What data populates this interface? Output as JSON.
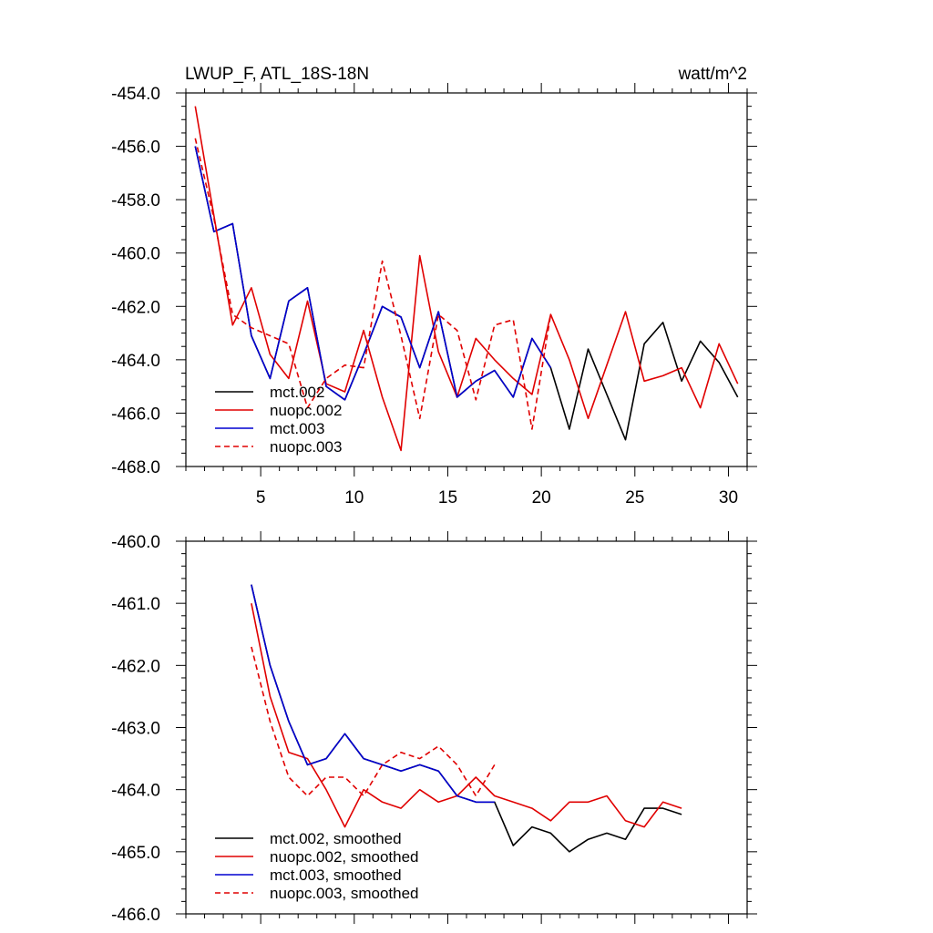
{
  "chart_data": [
    {
      "type": "line",
      "title": "LWUP_F, ATL_18S-18N",
      "units": "watt/m^2",
      "xlim": [
        1,
        31
      ],
      "ylim": [
        -468,
        -454
      ],
      "xticks": [
        5,
        10,
        15,
        20,
        25,
        30
      ],
      "xtick_labels": [
        "5",
        "10",
        "15",
        "20",
        "25",
        "30"
      ],
      "yticks": [
        -454,
        -456,
        -458,
        -460,
        -462,
        -464,
        -466,
        -468
      ],
      "ytick_labels": [
        "-454.0",
        "-456.0",
        "-458.0",
        "-460.0",
        "-462.0",
        "-464.0",
        "-466.0",
        "-468.0"
      ],
      "legend_position": "bottom-left",
      "series": [
        {
          "name": "mct.002",
          "color": "#000000",
          "dash": "solid",
          "x": [
            1.5,
            2.5,
            3.5,
            4.5,
            5.5,
            6.5,
            7.5,
            8.5,
            9.5,
            10.5,
            11.5,
            12.5,
            13.5,
            14.5,
            15.5,
            16.5,
            17.5,
            18.5,
            19.5,
            20.5,
            21.5,
            22.5,
            23.5,
            24.5,
            25.5,
            26.5,
            27.5,
            28.5,
            29.5,
            30.5
          ],
          "y": [
            -456.0,
            -459.2,
            -458.9,
            -463.1,
            -464.7,
            -461.8,
            -461.3,
            -465.0,
            -465.5,
            -463.8,
            -462.0,
            -462.4,
            -464.3,
            -462.2,
            -465.4,
            -464.8,
            -464.4,
            -465.4,
            -463.2,
            -464.3,
            -466.6,
            -463.6,
            -465.3,
            -467.0,
            -463.4,
            -462.6,
            -464.8,
            -463.3,
            -464.1,
            -465.4
          ]
        },
        {
          "name": "nuopc.002",
          "color": "#e00000",
          "dash": "solid",
          "x": [
            1.5,
            2.5,
            3.5,
            4.5,
            5.5,
            6.5,
            7.5,
            8.5,
            9.5,
            10.5,
            11.5,
            12.5,
            13.5,
            14.5,
            15.5,
            16.5,
            17.5,
            18.5,
            19.5,
            20.5,
            21.5,
            22.5,
            23.5,
            24.5,
            25.5,
            26.5,
            27.5,
            28.5,
            29.5,
            30.5
          ],
          "y": [
            -454.5,
            -458.6,
            -462.7,
            -461.3,
            -463.8,
            -464.7,
            -461.8,
            -464.9,
            -465.2,
            -462.9,
            -465.4,
            -467.4,
            -460.1,
            -463.7,
            -465.4,
            -463.2,
            -464.0,
            -464.7,
            -465.3,
            -462.3,
            -464.0,
            -466.2,
            -464.2,
            -462.2,
            -464.8,
            -464.6,
            -464.3,
            -465.8,
            -463.4,
            -464.9
          ]
        },
        {
          "name": "mct.003",
          "color": "#0000d0",
          "dash": "solid",
          "x": [
            1.5,
            2.5,
            3.5,
            4.5,
            5.5,
            6.5,
            7.5,
            8.5,
            9.5,
            10.5,
            11.5,
            12.5,
            13.5,
            14.5,
            15.5,
            16.5,
            17.5,
            18.5,
            19.5,
            20.5
          ],
          "y": [
            -456.0,
            -459.2,
            -458.9,
            -463.1,
            -464.7,
            -461.8,
            -461.3,
            -465.0,
            -465.5,
            -463.8,
            -462.0,
            -462.4,
            -464.3,
            -462.2,
            -465.4,
            -464.8,
            -464.4,
            -465.4,
            -463.2,
            -464.3
          ]
        },
        {
          "name": "nuopc.003",
          "color": "#e00000",
          "dash": "dashed",
          "x": [
            1.5,
            2.5,
            3.5,
            4.5,
            5.5,
            6.5,
            7.5,
            8.5,
            9.5,
            10.5,
            11.5,
            12.5,
            13.5,
            14.5,
            15.5,
            16.5,
            17.5,
            18.5,
            19.5,
            20.5
          ],
          "y": [
            -455.7,
            -458.7,
            -462.3,
            -462.8,
            -463.1,
            -463.4,
            -465.8,
            -464.7,
            -464.2,
            -464.3,
            -460.3,
            -463.1,
            -466.2,
            -462.3,
            -462.9,
            -465.5,
            -462.7,
            -462.5,
            -466.6,
            -462.3
          ]
        }
      ]
    },
    {
      "type": "line",
      "title": "",
      "xlim": [
        1,
        31
      ],
      "ylim": [
        -466,
        -460
      ],
      "xticks": [
        5,
        10,
        15,
        20,
        25,
        30
      ],
      "xtick_labels": [],
      "yticks": [
        -460,
        -461,
        -462,
        -463,
        -464,
        -465,
        -466
      ],
      "ytick_labels": [
        "-460.0",
        "-461.0",
        "-462.0",
        "-463.0",
        "-464.0",
        "-465.0",
        "-466.0"
      ],
      "legend_position": "bottom-left",
      "series": [
        {
          "name": "mct.002, smoothed",
          "color": "#000000",
          "dash": "solid",
          "x": [
            4.5,
            5.5,
            6.5,
            7.5,
            8.5,
            9.5,
            10.5,
            11.5,
            12.5,
            13.5,
            14.5,
            15.5,
            16.5,
            17.5,
            18.5,
            19.5,
            20.5,
            21.5,
            22.5,
            23.5,
            24.5,
            25.5,
            26.5,
            27.5
          ],
          "y": [
            -460.7,
            -462.0,
            -462.9,
            -463.6,
            -463.5,
            -463.1,
            -463.5,
            -463.6,
            -463.7,
            -463.6,
            -463.7,
            -464.1,
            -464.2,
            -464.2,
            -464.9,
            -464.6,
            -464.7,
            -465.0,
            -464.8,
            -464.7,
            -464.8,
            -464.3,
            -464.3,
            -464.4
          ]
        },
        {
          "name": "nuopc.002, smoothed",
          "color": "#e00000",
          "dash": "solid",
          "x": [
            4.5,
            5.5,
            6.5,
            7.5,
            8.5,
            9.5,
            10.5,
            11.5,
            12.5,
            13.5,
            14.5,
            15.5,
            16.5,
            17.5,
            18.5,
            19.5,
            20.5,
            21.5,
            22.5,
            23.5,
            24.5,
            25.5,
            26.5,
            27.5
          ],
          "y": [
            -461.0,
            -462.5,
            -463.4,
            -463.5,
            -464.0,
            -464.6,
            -464.0,
            -464.2,
            -464.3,
            -464.0,
            -464.2,
            -464.1,
            -463.8,
            -464.1,
            -464.2,
            -464.3,
            -464.5,
            -464.2,
            -464.2,
            -464.1,
            -464.5,
            -464.6,
            -464.2,
            -464.3
          ]
        },
        {
          "name": "mct.003, smoothed",
          "color": "#0000d0",
          "dash": "solid",
          "x": [
            4.5,
            5.5,
            6.5,
            7.5,
            8.5,
            9.5,
            10.5,
            11.5,
            12.5,
            13.5,
            14.5,
            15.5,
            16.5,
            17.5
          ],
          "y": [
            -460.7,
            -462.0,
            -462.9,
            -463.6,
            -463.5,
            -463.1,
            -463.5,
            -463.6,
            -463.7,
            -463.6,
            -463.7,
            -464.1,
            -464.2,
            -464.2
          ]
        },
        {
          "name": "nuopc.003, smoothed",
          "color": "#e00000",
          "dash": "dashed",
          "x": [
            4.5,
            5.5,
            6.5,
            7.5,
            8.5,
            9.5,
            10.5,
            11.5,
            12.5,
            13.5,
            14.5,
            15.5,
            16.5,
            17.5
          ],
          "y": [
            -461.7,
            -462.9,
            -463.8,
            -464.1,
            -463.8,
            -463.8,
            -464.1,
            -463.6,
            -463.4,
            -463.5,
            -463.3,
            -463.6,
            -464.1,
            -463.6
          ]
        }
      ]
    }
  ]
}
